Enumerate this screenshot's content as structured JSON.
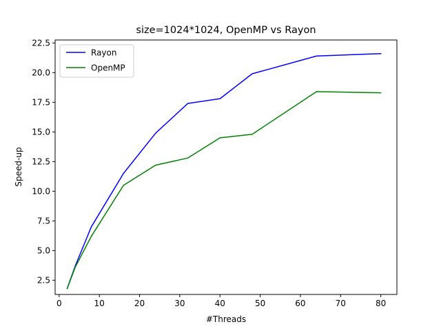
{
  "chart_data": {
    "type": "line",
    "title": "size=1024*1024, OpenMP vs Rayon",
    "xlabel": "#Threads",
    "ylabel": "Speed-up",
    "xlim": [
      -1,
      84
    ],
    "ylim": [
      1.3,
      22.75
    ],
    "xticks": [
      0,
      10,
      20,
      30,
      40,
      50,
      60,
      70,
      80
    ],
    "yticks": [
      2.5,
      5.0,
      7.5,
      10.0,
      12.5,
      15.0,
      17.5,
      20.0,
      22.5
    ],
    "ytick_labels": [
      "2.5",
      "5.0",
      "7.5",
      "10.0",
      "12.5",
      "15.0",
      "17.5",
      "20.0",
      "22.5"
    ],
    "grid": false,
    "legend_position": "top-left",
    "x": [
      2,
      4,
      8,
      16,
      24,
      32,
      40,
      48,
      64,
      80
    ],
    "series": [
      {
        "name": "Rayon",
        "color": "#0000ff",
        "values": [
          1.8,
          3.7,
          7.0,
          11.5,
          14.9,
          17.4,
          17.8,
          19.9,
          21.4,
          21.6
        ]
      },
      {
        "name": "OpenMP",
        "color": "#008000",
        "values": [
          1.8,
          3.6,
          6.2,
          10.5,
          12.2,
          12.8,
          14.5,
          14.8,
          18.4,
          18.3
        ]
      }
    ]
  }
}
